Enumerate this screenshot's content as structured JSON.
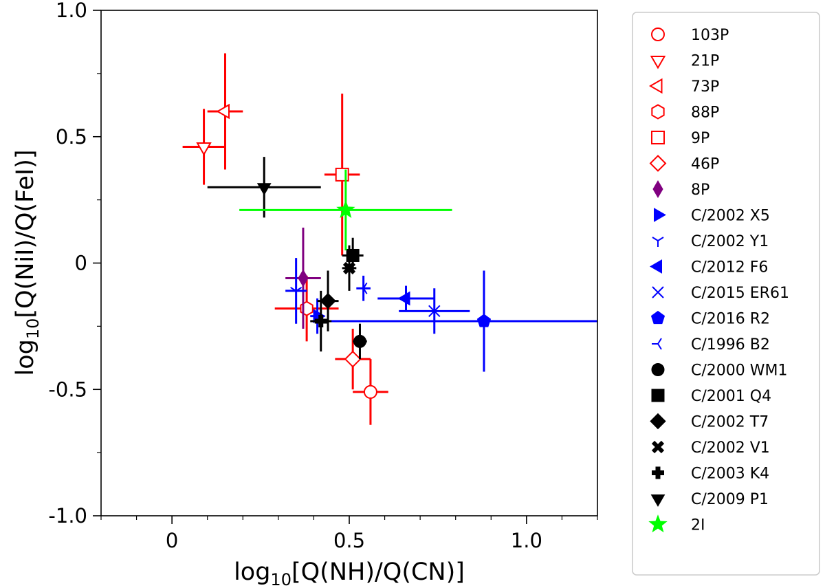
{
  "chart_data": {
    "type": "scatter",
    "title": "",
    "xlabel": {
      "pre": "log",
      "sub": "10",
      "post": "[Q(NH)/Q(CN)]"
    },
    "ylabel": {
      "pre": "log",
      "sub": "10",
      "post": "[Q(NiI)/Q(FeI)]"
    },
    "xlim": [
      -0.2,
      1.2
    ],
    "ylim": [
      -1.0,
      1.0
    ],
    "xticks": [
      {
        "v": 0.0,
        "label": "0"
      },
      {
        "v": 0.5,
        "label": "0.5"
      },
      {
        "v": 1.0,
        "label": "1.0"
      }
    ],
    "yticks": [
      {
        "v": -1.0,
        "label": "-1.0"
      },
      {
        "v": -0.5,
        "label": "-0.5"
      },
      {
        "v": 0.0,
        "label": "0"
      },
      {
        "v": 0.5,
        "label": "0.5"
      },
      {
        "v": 1.0,
        "label": "1.0"
      }
    ],
    "xminor": [
      -0.2,
      -0.1,
      0.1,
      0.2,
      0.3,
      0.4,
      0.6,
      0.7,
      0.8,
      0.9,
      1.1,
      1.2
    ],
    "yminor": [
      -0.75,
      -0.25,
      0.25,
      0.75
    ],
    "colors": {
      "jupiter_family": "#ff0000",
      "halley_type": "#800080",
      "new": "#0000ff",
      "old": "#000000",
      "interstellar": "#00ff00"
    },
    "series": [
      {
        "name": "103P",
        "color": "#ff0000",
        "marker": "circle-open",
        "points": [
          {
            "x": 0.56,
            "y": -0.51,
            "xerr": 0.05,
            "yerr": 0.13
          }
        ]
      },
      {
        "name": "21P",
        "color": "#ff0000",
        "marker": "triangle-down-open",
        "points": [
          {
            "x": 0.09,
            "y": 0.46,
            "xerr": 0.06,
            "yerr": 0.15
          }
        ]
      },
      {
        "name": "73P",
        "color": "#ff0000",
        "marker": "triangle-left-open",
        "points": [
          {
            "x": 0.15,
            "y": 0.6,
            "xerr": 0.05,
            "yerr": 0.23
          }
        ]
      },
      {
        "name": "88P",
        "color": "#ff0000",
        "marker": "hexagon-open",
        "points": [
          {
            "x": 0.38,
            "y": -0.18,
            "xerr": 0.09,
            "yerr": 0.13
          }
        ]
      },
      {
        "name": "9P",
        "color": "#ff0000",
        "marker": "square-open",
        "points": [
          {
            "x": 0.48,
            "y": 0.35,
            "xerr": 0.05,
            "yerr": 0.32
          }
        ]
      },
      {
        "name": "46P",
        "color": "#ff0000",
        "marker": "diamond-open",
        "points": [
          {
            "x": 0.51,
            "y": -0.38,
            "xerr": 0.05,
            "yerr": 0.12
          }
        ]
      },
      {
        "name": "8P",
        "color": "#800080",
        "marker": "thin-diamond",
        "points": [
          {
            "x": 0.37,
            "y": -0.06,
            "xerr": 0.05,
            "yerr": 0.2
          }
        ]
      },
      {
        "name": "C/2002 X5",
        "color": "#0000ff",
        "marker": "triangle-right",
        "points": [
          {
            "x": 0.41,
            "y": -0.21,
            "xerr": 0.02,
            "yerr": 0.07
          }
        ]
      },
      {
        "name": "C/2002 Y1",
        "color": "#0000ff",
        "marker": "tri-down",
        "points": [
          {
            "x": 0.35,
            "y": -0.11,
            "xerr": 0.03,
            "yerr": 0.13
          }
        ]
      },
      {
        "name": "C/2012 F6",
        "color": "#0000ff",
        "marker": "triangle-left",
        "points": [
          {
            "x": 0.66,
            "y": -0.14,
            "xerr": 0.08,
            "yerr": 0.05
          }
        ]
      },
      {
        "name": "C/2015 ER61",
        "color": "#0000ff",
        "marker": "x",
        "points": [
          {
            "x": 0.74,
            "y": -0.19,
            "xerr": 0.1,
            "yerr": 0.09
          }
        ]
      },
      {
        "name": "C/2016 R2",
        "color": "#0000ff",
        "marker": "pentagon",
        "points": [
          {
            "x": 0.88,
            "y": -0.23,
            "xerr": 0.47,
            "yerr": 0.2
          }
        ]
      },
      {
        "name": "C/1996 B2",
        "color": "#0000ff",
        "marker": "tri-left",
        "points": [
          {
            "x": 0.54,
            "y": -0.1,
            "xerr": 0.02,
            "yerr": 0.05
          }
        ]
      },
      {
        "name": "C/2000 WM1",
        "color": "#000000",
        "marker": "circle",
        "points": [
          {
            "x": 0.53,
            "y": -0.31,
            "xerr": 0.02,
            "yerr": 0.07
          }
        ]
      },
      {
        "name": "C/2001 Q4",
        "color": "#000000",
        "marker": "square",
        "points": [
          {
            "x": 0.51,
            "y": 0.03,
            "xerr": 0.03,
            "yerr": 0.07
          }
        ]
      },
      {
        "name": "C/2002 T7",
        "color": "#000000",
        "marker": "diamond",
        "points": [
          {
            "x": 0.44,
            "y": -0.15,
            "xerr": 0.03,
            "yerr": 0.12
          }
        ]
      },
      {
        "name": "C/2002 V1",
        "color": "#000000",
        "marker": "x-filled",
        "points": [
          {
            "x": 0.5,
            "y": -0.02,
            "xerr": 0.02,
            "yerr": 0.09
          }
        ]
      },
      {
        "name": "C/2003 K4",
        "color": "#000000",
        "marker": "plus-filled",
        "points": [
          {
            "x": 0.42,
            "y": -0.23,
            "xerr": 0.03,
            "yerr": 0.12
          }
        ]
      },
      {
        "name": "C/2009 P1",
        "color": "#000000",
        "marker": "triangle-down",
        "points": [
          {
            "x": 0.26,
            "y": 0.3,
            "xerr": 0.16,
            "yerr": 0.12
          }
        ]
      },
      {
        "name": "2I",
        "color": "#00ff00",
        "marker": "star",
        "points": [
          {
            "x": 0.49,
            "y": 0.21,
            "xerr": 0.3,
            "yerr": 0.16
          }
        ]
      }
    ],
    "legend_position": "outside-right"
  }
}
